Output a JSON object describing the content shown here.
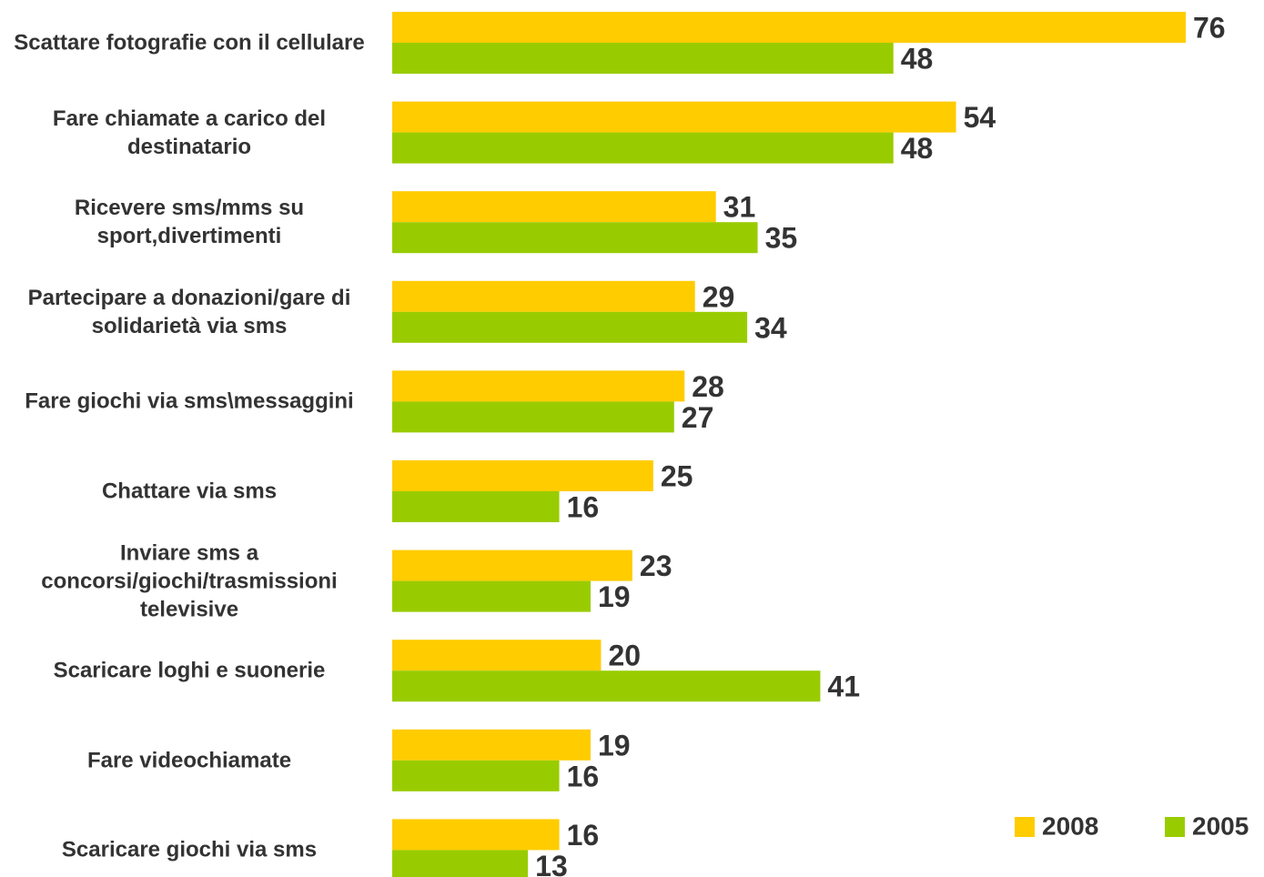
{
  "chart_data": {
    "type": "bar",
    "orientation": "horizontal",
    "categories": [
      "Scattare fotografie con il cellulare",
      "Fare chiamate a carico del destinatario",
      "Ricevere sms/mms su sport,divertimenti",
      "Partecipare a donazioni/gare di solidarietà via sms",
      "Fare giochi via sms\\messaggini",
      "Chattare via sms",
      "Inviare sms a concorsi/giochi/trasmissioni televisive",
      "Scaricare loghi e suonerie",
      "Fare videochiamate",
      "Scaricare giochi via sms"
    ],
    "series": [
      {
        "name": "2008",
        "color": "#ffcc00",
        "values": [
          76,
          54,
          31,
          29,
          28,
          25,
          23,
          20,
          19,
          16
        ]
      },
      {
        "name": "2005",
        "color": "#99cc00",
        "values": [
          48,
          48,
          35,
          34,
          27,
          16,
          19,
          41,
          16,
          13
        ]
      }
    ],
    "legend": "bottom-right"
  }
}
